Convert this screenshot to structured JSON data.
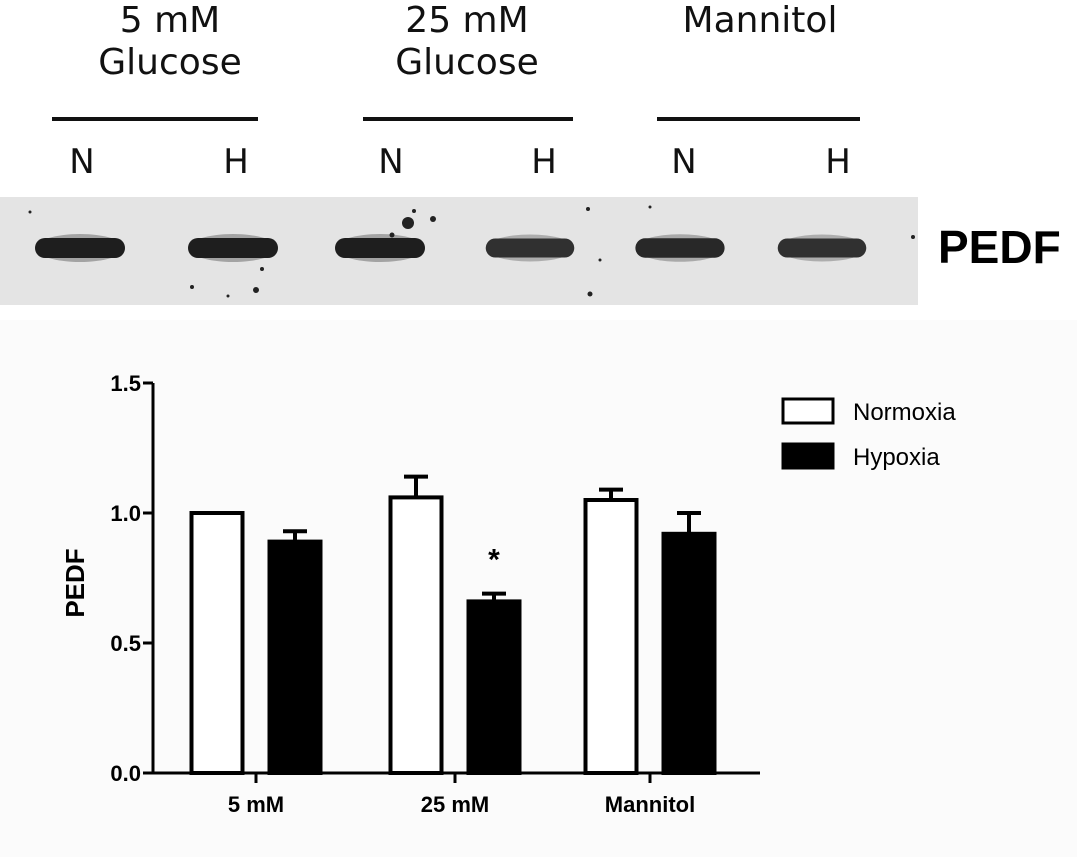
{
  "blot": {
    "groups": [
      {
        "line1": "5 mM",
        "line2": "Glucose"
      },
      {
        "line1": "25 mM",
        "line2": "Glucose"
      },
      {
        "line1": "",
        "line2": "Mannitol"
      }
    ],
    "lanes": [
      "N",
      "H",
      "N",
      "H",
      "N",
      "H"
    ],
    "protein_label": "PEDF",
    "band_intensity": [
      1.0,
      1.0,
      1.0,
      0.85,
      0.92,
      0.85
    ]
  },
  "chart_data": {
    "type": "bar",
    "categories": [
      "5 mM",
      "25 mM",
      "Mannitol"
    ],
    "series": [
      {
        "name": "Normoxia",
        "values": [
          1.0,
          1.06,
          1.05
        ],
        "errors": [
          0.0,
          0.08,
          0.04
        ],
        "fill": "#ffffff"
      },
      {
        "name": "Hypoxia",
        "values": [
          0.89,
          0.66,
          0.92
        ],
        "errors": [
          0.04,
          0.03,
          0.08
        ],
        "fill": "#000000"
      }
    ],
    "annotations": [
      {
        "category": "25 mM",
        "series": "Hypoxia",
        "text": "*"
      }
    ],
    "ylabel": "PEDF",
    "xlabel": "",
    "ylim": [
      0,
      1.5
    ],
    "yticks": [
      "0.0",
      "0.5",
      "1.0",
      "1.5"
    ],
    "grid": false,
    "legend": "top-right"
  }
}
